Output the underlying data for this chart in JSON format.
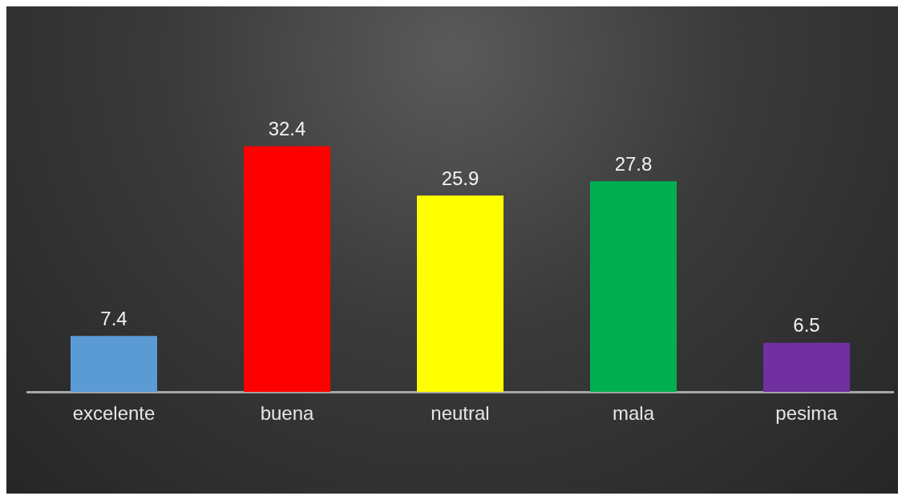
{
  "chart_data": {
    "type": "bar",
    "categories": [
      "excelente",
      "buena",
      "neutral",
      "mala",
      "pesima"
    ],
    "values": [
      7.4,
      32.4,
      25.9,
      27.8,
      6.5
    ],
    "colors": [
      "#5b9bd5",
      "#ff0000",
      "#ffff00",
      "#00b050",
      "#7030a0"
    ],
    "tick_labels": "x",
    "grid": false,
    "legend": false,
    "data_labels": true
  }
}
